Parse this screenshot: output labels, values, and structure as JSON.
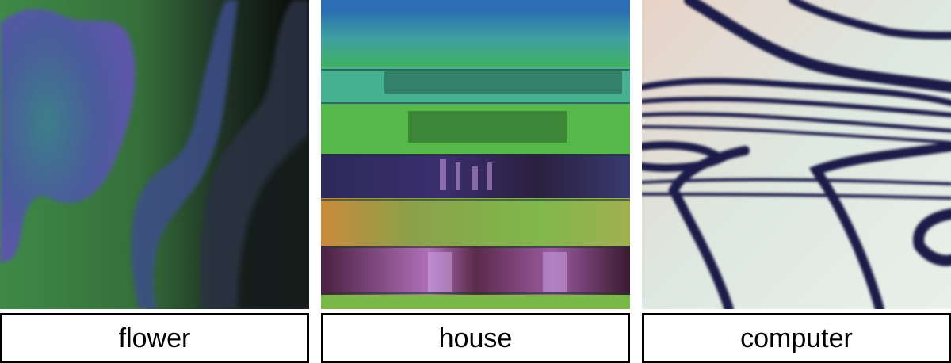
{
  "tiles": [
    {
      "label": "flower",
      "image": "abstract-green-purple-swirl"
    },
    {
      "label": "house",
      "image": "abstract-glitch-stripes"
    },
    {
      "label": "computer",
      "image": "abstract-light-wave-bands"
    }
  ]
}
